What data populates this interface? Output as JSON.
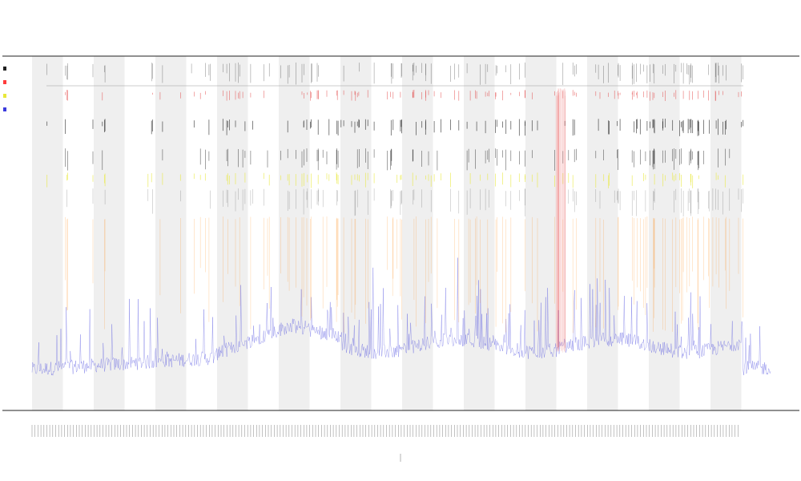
{
  "chart_data": {
    "type": "line",
    "title": "",
    "xlabel": "",
    "ylabel": "",
    "x_tick_count": 240,
    "band_count": 12,
    "colors": {
      "background": "#ffffff",
      "band": "#efefef",
      "axis": "#222222",
      "baseline": "#ff3b3b",
      "coverage": "#3b3bdd",
      "marks_dark": "#222222",
      "marks_red": "#e03030",
      "marks_orange": "#ff8c1a",
      "marks_yellow": "#e8e83a"
    },
    "legend": [
      {
        "label": "",
        "color": "#222222"
      },
      {
        "label": "",
        "color": "#ff3b3b"
      },
      {
        "label": "",
        "color": "#e8e83a"
      },
      {
        "label": "",
        "color": "#3b3bdd"
      }
    ],
    "grid": false
  }
}
